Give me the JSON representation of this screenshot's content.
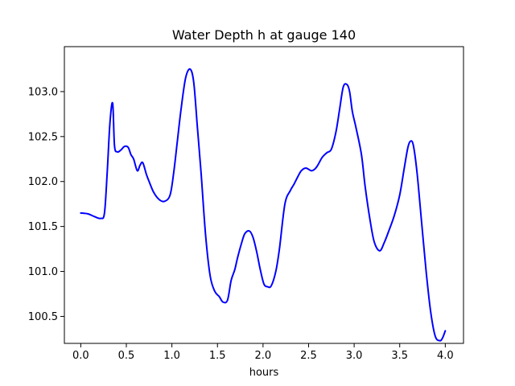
{
  "chart_data": {
    "type": "line",
    "title": "Water Depth h at gauge 140",
    "xlabel": "hours",
    "ylabel": "",
    "xlim": [
      -0.18,
      4.2
    ],
    "ylim": [
      100.2,
      103.5
    ],
    "xticks": [
      "0.0",
      "0.5",
      "1.0",
      "1.5",
      "2.0",
      "2.5",
      "3.0",
      "3.5",
      "4.0"
    ],
    "yticks": [
      "100.5",
      "101.0",
      "101.5",
      "102.0",
      "102.5",
      "103.0"
    ],
    "grid": false,
    "color": "#0000ff",
    "series": [
      {
        "x": [
          0.0,
          0.08,
          0.15,
          0.22,
          0.26,
          0.29,
          0.32,
          0.35,
          0.37,
          0.4,
          0.44,
          0.48,
          0.52,
          0.55,
          0.58,
          0.62,
          0.65,
          0.68,
          0.72,
          0.75,
          0.8,
          0.86,
          0.92,
          0.98,
          1.02,
          1.06,
          1.1,
          1.15,
          1.2,
          1.24,
          1.28,
          1.32,
          1.37,
          1.42,
          1.47,
          1.52,
          1.56,
          1.61,
          1.65,
          1.69,
          1.72,
          1.76,
          1.8,
          1.85,
          1.89,
          1.93,
          1.97,
          2.01,
          2.05,
          2.09,
          2.14,
          2.18,
          2.24,
          2.3,
          2.34,
          2.38,
          2.42,
          2.47,
          2.53,
          2.57,
          2.6,
          2.65,
          2.7,
          2.75,
          2.8,
          2.84,
          2.88,
          2.92,
          2.95,
          2.98,
          3.02,
          3.08,
          3.12,
          3.17,
          3.22,
          3.28,
          3.33,
          3.38,
          3.44,
          3.5,
          3.55,
          3.59,
          3.62,
          3.65,
          3.69,
          3.74,
          3.79,
          3.84,
          3.89,
          3.94,
          3.97,
          4.0
        ],
        "y": [
          101.65,
          101.64,
          101.61,
          101.59,
          101.65,
          102.1,
          102.65,
          102.87,
          102.4,
          102.33,
          102.35,
          102.39,
          102.38,
          102.3,
          102.25,
          102.12,
          102.18,
          102.21,
          102.08,
          102.0,
          101.88,
          101.8,
          101.78,
          101.85,
          102.1,
          102.45,
          102.8,
          103.15,
          103.25,
          103.1,
          102.6,
          102.1,
          101.4,
          100.95,
          100.78,
          100.72,
          100.66,
          100.68,
          100.9,
          101.02,
          101.15,
          101.3,
          101.42,
          101.45,
          101.38,
          101.22,
          101.02,
          100.86,
          100.83,
          100.84,
          101.0,
          101.25,
          101.75,
          101.9,
          101.97,
          102.05,
          102.12,
          102.15,
          102.12,
          102.14,
          102.18,
          102.27,
          102.32,
          102.36,
          102.55,
          102.8,
          103.05,
          103.08,
          103.0,
          102.78,
          102.6,
          102.3,
          101.95,
          101.6,
          101.33,
          101.23,
          101.32,
          101.45,
          101.62,
          101.85,
          102.15,
          102.38,
          102.45,
          102.4,
          102.1,
          101.55,
          101.0,
          100.55,
          100.28,
          100.23,
          100.26,
          100.34
        ]
      }
    ]
  }
}
